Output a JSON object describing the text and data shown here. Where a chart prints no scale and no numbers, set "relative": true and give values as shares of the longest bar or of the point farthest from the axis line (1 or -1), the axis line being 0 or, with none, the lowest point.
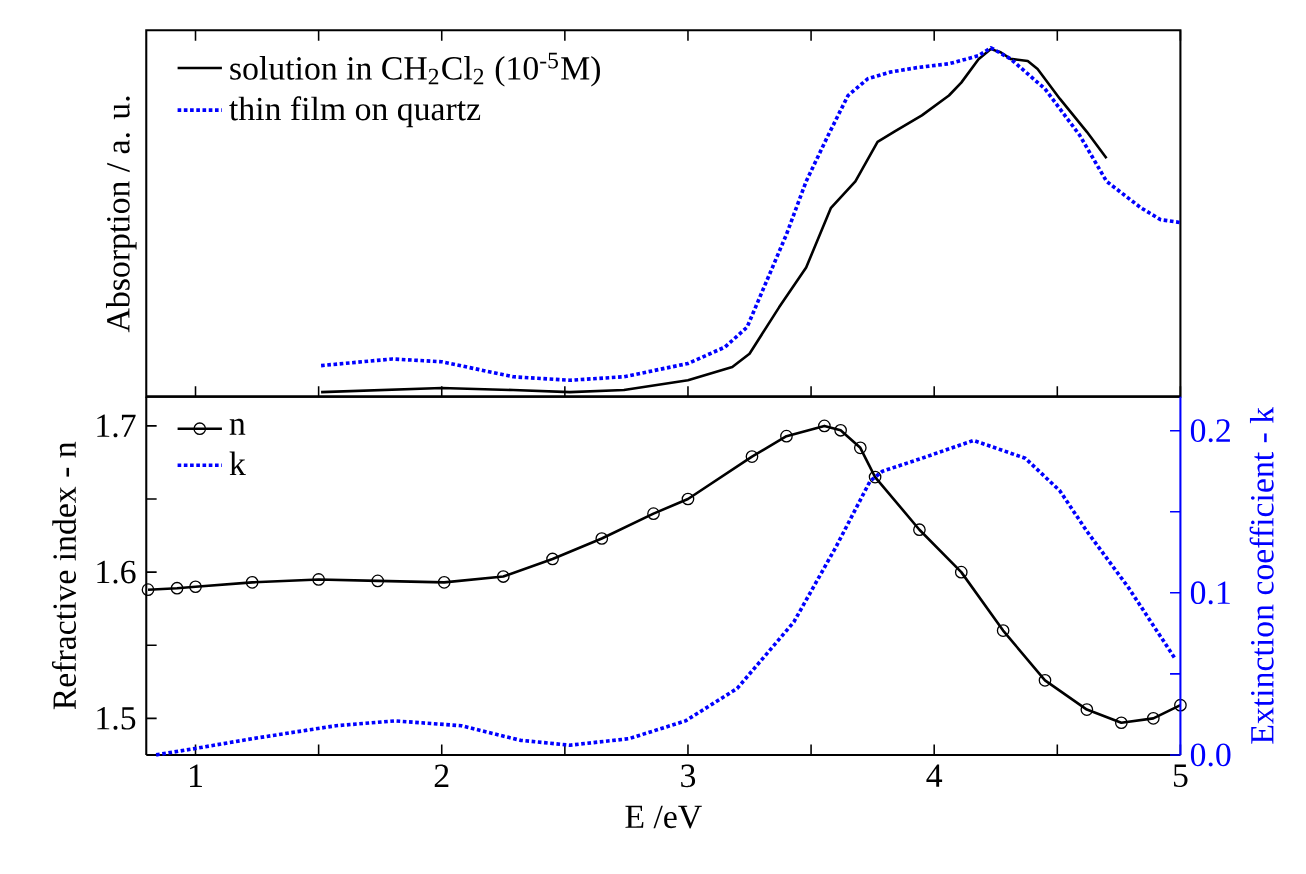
{
  "chart_data": [
    {
      "type": "line",
      "relative": true,
      "ylabel": "Absorption / a. u.",
      "xlim": [
        0.8,
        5
      ],
      "xticks": [
        1,
        {
          "value": 1.5,
          "label": null
        },
        2,
        {
          "value": 2.5,
          "label": null
        },
        3,
        {
          "value": 3.5,
          "label": null
        },
        4,
        {
          "value": 4.5,
          "label": null
        },
        5
      ],
      "tick_labels": false,
      "legend": "top left",
      "grid": false,
      "marker": "none",
      "series": [
        {
          "name": "solution in CH$_{2}$Cl$_{2}$ (10$^{-5}$M)",
          "color": "#000000",
          "line_style": "solid",
          "x": [
            1.51,
            2.0,
            2.29,
            2.52,
            2.74,
            3.0,
            3.18,
            3.25,
            3.37,
            3.48,
            3.58,
            3.68,
            3.77,
            3.84,
            3.95,
            4.06,
            4.11,
            4.18,
            4.23,
            4.27,
            4.31,
            4.38,
            4.42,
            4.51,
            4.62,
            4.7
          ],
          "values": [
            0.013,
            0.025,
            0.019,
            0.013,
            0.019,
            0.047,
            0.085,
            0.123,
            0.256,
            0.37,
            0.54,
            0.617,
            0.73,
            0.76,
            0.806,
            0.863,
            0.9,
            0.967,
            0.996,
            0.987,
            0.968,
            0.962,
            0.939,
            0.854,
            0.759,
            0.683
          ]
        },
        {
          "name": "thin film on quartz",
          "color": "#0000ff",
          "line_style": "dotted",
          "x": [
            1.51,
            1.8,
            2.0,
            2.29,
            2.52,
            2.74,
            3.0,
            3.15,
            3.24,
            3.32,
            3.4,
            3.48,
            3.57,
            3.65,
            3.73,
            3.82,
            3.93,
            4.06,
            4.18,
            4.23,
            4.31,
            4.45,
            4.59,
            4.7,
            4.84,
            4.92,
            5.0
          ],
          "values": [
            0.089,
            0.108,
            0.1,
            0.057,
            0.047,
            0.057,
            0.095,
            0.142,
            0.199,
            0.332,
            0.465,
            0.617,
            0.75,
            0.863,
            0.911,
            0.93,
            0.943,
            0.954,
            0.977,
            1.0,
            0.968,
            0.882,
            0.75,
            0.617,
            0.541,
            0.507,
            0.499
          ]
        }
      ]
    },
    {
      "type": "line",
      "xlabel": "E /eV",
      "ylabel": "Refractive index - n",
      "y2label": "Extinction coefficient - k",
      "xlim": [
        0.8,
        5
      ],
      "xticks": [
        1,
        {
          "value": 1.5,
          "label": null
        },
        2,
        {
          "value": 2.5,
          "label": null
        },
        3,
        {
          "value": 3.5,
          "label": null
        },
        4,
        {
          "value": 4.5,
          "label": null
        },
        5
      ],
      "ylim": [
        1.475,
        1.72
      ],
      "yticks": [
        1.5,
        {
          "value": 1.55,
          "label": null
        },
        1.6,
        {
          "value": 1.65,
          "label": null
        },
        1.7
      ],
      "y2lim": [
        0,
        0.221
      ],
      "y2ticks": [
        {
          "value": 0,
          "label": "0.0"
        },
        {
          "value": 0.05,
          "label": null
        },
        0.1,
        {
          "value": 0.15,
          "label": null
        },
        0.2
      ],
      "legend": "top left",
      "grid": false,
      "series": [
        {
          "name": "n",
          "color": "#000000",
          "marker": "circle",
          "line_style": "solid",
          "x": [
            0.807,
            0.925,
            1.0,
            1.23,
            1.5,
            1.74,
            2.01,
            2.25,
            2.45,
            2.65,
            2.86,
            3.0,
            3.26,
            3.4,
            3.554,
            3.62,
            3.7,
            3.76,
            3.94,
            4.11,
            4.28,
            4.45,
            4.62,
            4.76,
            4.89,
            5.0
          ],
          "values": [
            1.588,
            1.589,
            1.59,
            1.593,
            1.595,
            1.594,
            1.593,
            1.597,
            1.609,
            1.623,
            1.64,
            1.65,
            1.679,
            1.693,
            1.7,
            1.697,
            1.685,
            1.665,
            1.629,
            1.6,
            1.56,
            1.526,
            1.506,
            1.497,
            1.5,
            1.509
          ]
        },
        {
          "name": "k",
          "color": "#0000ff",
          "marker": "none",
          "line_style": "dotted",
          "axis": "y2",
          "x": [
            0.84,
            1.0,
            1.23,
            1.57,
            1.81,
            2.08,
            2.32,
            2.52,
            2.76,
            2.99,
            3.2,
            3.43,
            3.6,
            3.74,
            3.79,
            3.95,
            4.16,
            4.37,
            4.51,
            4.62,
            4.79,
            4.98
          ],
          "values": [
            0.0,
            0.004,
            0.01,
            0.018,
            0.021,
            0.018,
            0.009,
            0.006,
            0.01,
            0.021,
            0.041,
            0.082,
            0.128,
            0.169,
            0.175,
            0.183,
            0.194,
            0.183,
            0.163,
            0.138,
            0.103,
            0.059
          ]
        }
      ]
    }
  ]
}
